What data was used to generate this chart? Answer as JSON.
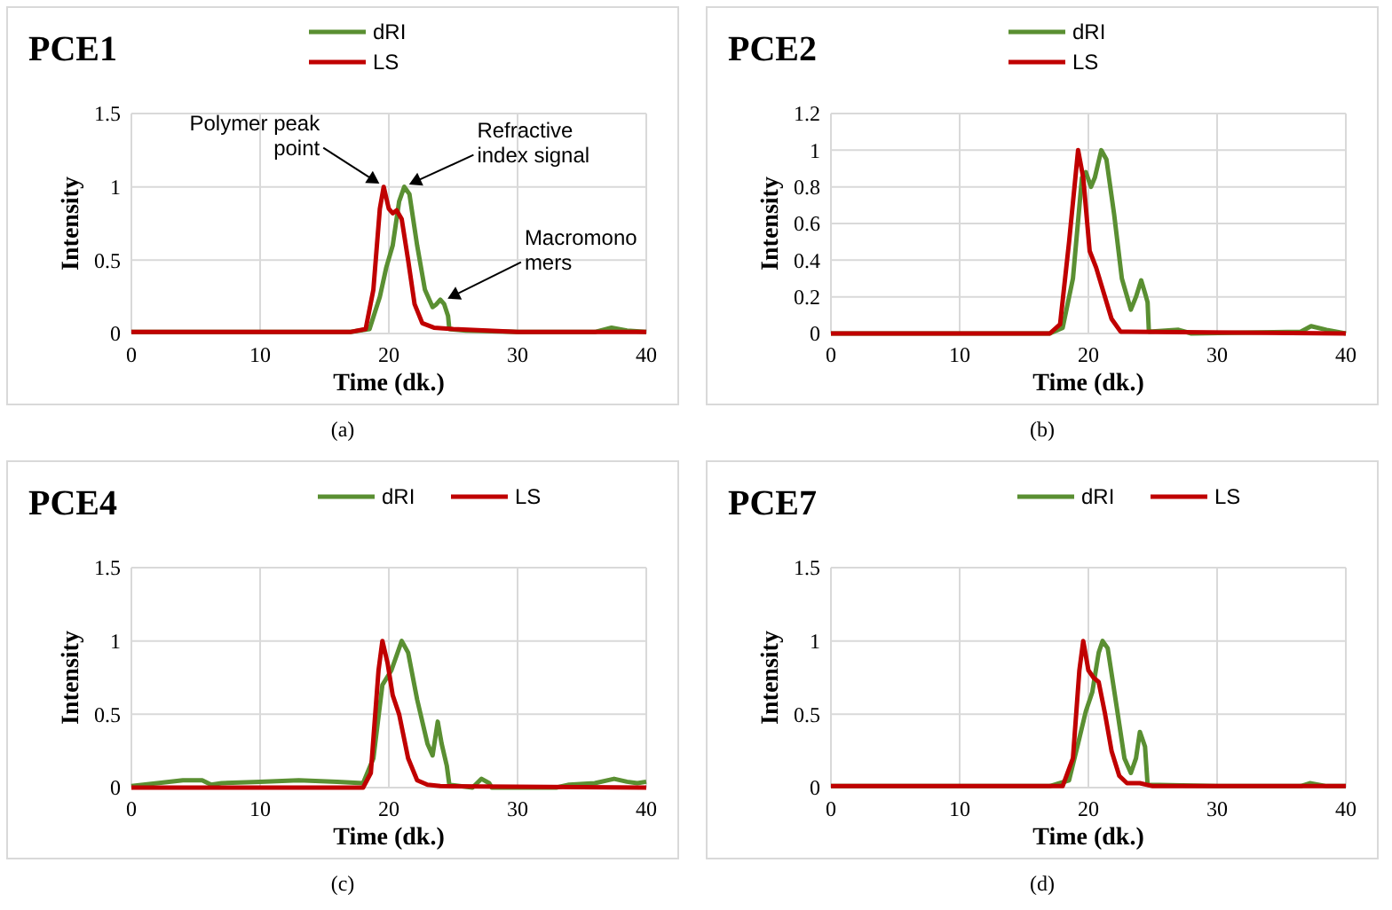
{
  "chart_data": [
    {
      "type": "line",
      "title": "PCE1",
      "xlabel": "Time (dk.)",
      "ylabel": "Intensity",
      "xlim": [
        0,
        40
      ],
      "xticks": [
        0,
        10,
        20,
        30,
        40
      ],
      "ylim": [
        0,
        1.5
      ],
      "yticks": [
        0,
        0.5,
        1,
        1.5
      ],
      "grid": true,
      "legend": "top",
      "line_style": "solid",
      "marker": "none",
      "annotations": [
        {
          "text": "Polymer peak\npoint",
          "x": 19.6,
          "y": 1
        },
        {
          "text": "Refractive\nindex signal",
          "x": 21.2,
          "y": 1
        },
        {
          "text": "Macromono\nmers",
          "x": 24.2,
          "y": 0.22
        },
        "(a)"
      ],
      "series": [
        {
          "name": "dRI",
          "color": "#5a8f32",
          "x": [
            0,
            10,
            17,
            18.5,
            19.3,
            19.8,
            20.3,
            20.8,
            21.2,
            21.6,
            22.2,
            22.8,
            23.4,
            23.7,
            24.0,
            24.3,
            24.6,
            24.7,
            26,
            30,
            36,
            37.3,
            38.5,
            40
          ],
          "values": [
            0.01,
            0.01,
            0.01,
            0.03,
            0.25,
            0.45,
            0.6,
            0.9,
            1.0,
            0.95,
            0.6,
            0.3,
            0.18,
            0.2,
            0.23,
            0.2,
            0.12,
            0.03,
            0.02,
            0.01,
            0.01,
            0.04,
            0.02,
            0.01
          ]
        },
        {
          "name": "LS",
          "color": "#c00000",
          "x": [
            0,
            17,
            18.2,
            18.8,
            19.3,
            19.6,
            20.0,
            20.3,
            20.6,
            21.0,
            21.5,
            22.0,
            22.6,
            23.5,
            25,
            30,
            40
          ],
          "values": [
            0.01,
            0.01,
            0.03,
            0.3,
            0.85,
            1.0,
            0.85,
            0.82,
            0.84,
            0.78,
            0.5,
            0.2,
            0.07,
            0.04,
            0.03,
            0.01,
            0.01
          ]
        }
      ]
    },
    {
      "type": "line",
      "title": "PCE2",
      "xlabel": "Time (dk.)",
      "ylabel": "Intensity",
      "xlim": [
        0,
        40
      ],
      "xticks": [
        0,
        10,
        20,
        30,
        40
      ],
      "ylim": [
        0,
        1.2
      ],
      "yticks": [
        0,
        0.2,
        0.4,
        0.6,
        0.8,
        1,
        1.2
      ],
      "grid": true,
      "legend": "top",
      "line_style": "solid",
      "marker": "none",
      "annotations": [
        "(b)"
      ],
      "series": [
        {
          "name": "dRI",
          "color": "#5a8f32",
          "x": [
            0,
            17,
            18,
            18.8,
            19.5,
            19.8,
            20.2,
            20.5,
            21,
            21.4,
            22,
            22.6,
            23.3,
            23.7,
            24.1,
            24.4,
            24.6,
            24.7,
            27,
            28,
            36.5,
            37.3,
            38.5,
            40
          ],
          "values": [
            0,
            0,
            0.03,
            0.3,
            0.85,
            0.88,
            0.8,
            0.85,
            1.0,
            0.95,
            0.65,
            0.3,
            0.13,
            0.2,
            0.29,
            0.22,
            0.17,
            0.01,
            0.02,
            0,
            0.01,
            0.04,
            0.02,
            0
          ]
        },
        {
          "name": "LS",
          "color": "#c00000",
          "x": [
            0,
            17,
            17.8,
            18.5,
            19.2,
            19.6,
            20.1,
            20.6,
            21.2,
            21.8,
            22.5,
            40
          ],
          "values": [
            0,
            0,
            0.05,
            0.5,
            1.0,
            0.85,
            0.45,
            0.36,
            0.22,
            0.08,
            0.01,
            0
          ]
        }
      ]
    },
    {
      "type": "line",
      "title": "PCE4",
      "xlabel": "Time (dk.)",
      "ylabel": "Intensity",
      "xlim": [
        0,
        40
      ],
      "xticks": [
        0,
        10,
        20,
        30,
        40
      ],
      "ylim": [
        0,
        1.5
      ],
      "yticks": [
        0,
        0.5,
        1,
        1.5
      ],
      "grid": true,
      "legend": "top",
      "line_style": "solid",
      "marker": "none",
      "annotations": [
        "(c)"
      ],
      "series": [
        {
          "name": "dRI",
          "color": "#5a8f32",
          "x": [
            0,
            2,
            4,
            5.5,
            6.2,
            7,
            10,
            13,
            16,
            18,
            18.8,
            19.5,
            20.2,
            21,
            21.5,
            22.2,
            23,
            23.4,
            23.8,
            24.1,
            24.5,
            24.7,
            26.5,
            27.2,
            27.8,
            28,
            33,
            34,
            36,
            37.5,
            38.5,
            39.3,
            40
          ],
          "values": [
            0.01,
            0.03,
            0.05,
            0.05,
            0.02,
            0.03,
            0.04,
            0.05,
            0.04,
            0.03,
            0.2,
            0.7,
            0.8,
            1.0,
            0.92,
            0.6,
            0.3,
            0.22,
            0.45,
            0.3,
            0.15,
            0.02,
            0.0,
            0.06,
            0.03,
            0.0,
            0.0,
            0.02,
            0.03,
            0.06,
            0.04,
            0.03,
            0.04
          ]
        },
        {
          "name": "LS",
          "color": "#c00000",
          "x": [
            0,
            18,
            18.6,
            19.2,
            19.5,
            19.9,
            20.3,
            20.8,
            21.5,
            22.2,
            23,
            24,
            40
          ],
          "values": [
            0,
            0,
            0.1,
            0.8,
            1.0,
            0.85,
            0.63,
            0.5,
            0.2,
            0.05,
            0.02,
            0.01,
            0
          ]
        }
      ]
    },
    {
      "type": "line",
      "title": "PCE7",
      "xlabel": "Time (dk.)",
      "ylabel": "Intensity",
      "xlim": [
        0,
        40
      ],
      "xticks": [
        0,
        10,
        20,
        30,
        40
      ],
      "ylim": [
        0,
        1.5
      ],
      "yticks": [
        0,
        0.5,
        1,
        1.5
      ],
      "grid": true,
      "legend": "top",
      "line_style": "solid",
      "marker": "none",
      "annotations": [
        "(d)"
      ],
      "series": [
        {
          "name": "dRI",
          "color": "#5a8f32",
          "x": [
            0,
            17,
            18.5,
            19.2,
            19.8,
            20.3,
            20.8,
            21.1,
            21.5,
            22.2,
            22.8,
            23.3,
            23.7,
            24.0,
            24.4,
            24.6,
            30,
            36.5,
            37.2,
            38.5,
            40
          ],
          "values": [
            0.01,
            0.01,
            0.05,
            0.3,
            0.52,
            0.65,
            0.92,
            1.0,
            0.95,
            0.55,
            0.2,
            0.1,
            0.2,
            0.38,
            0.28,
            0.02,
            0.01,
            0.01,
            0.03,
            0.01,
            0.01
          ]
        },
        {
          "name": "LS",
          "color": "#c00000",
          "x": [
            0,
            18,
            18.8,
            19.3,
            19.6,
            20.0,
            20.4,
            20.8,
            21.3,
            21.8,
            22.4,
            23,
            24,
            25,
            40
          ],
          "values": [
            0.01,
            0.01,
            0.2,
            0.8,
            1.0,
            0.8,
            0.75,
            0.72,
            0.5,
            0.25,
            0.08,
            0.03,
            0.03,
            0.01,
            0.01
          ]
        }
      ]
    }
  ]
}
